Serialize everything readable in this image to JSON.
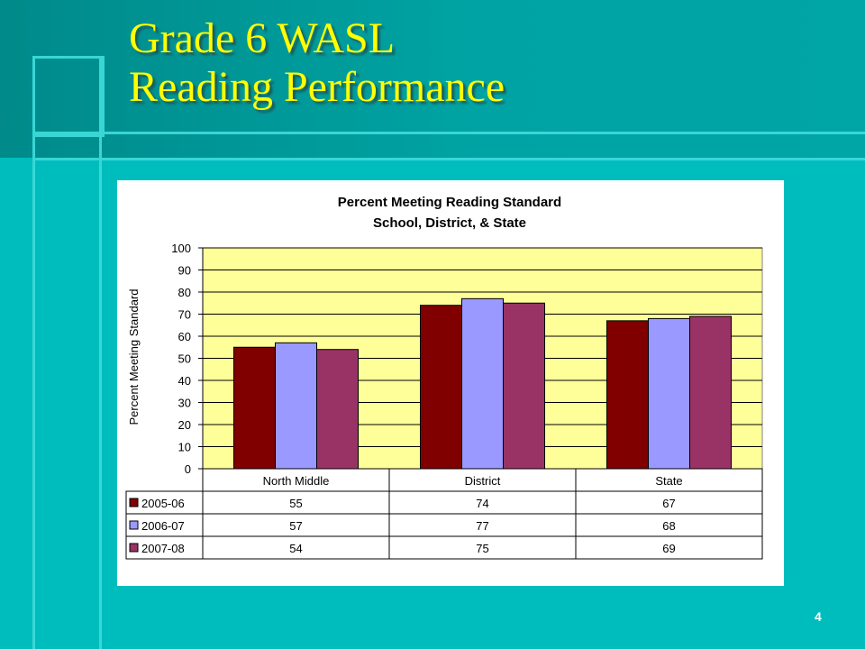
{
  "slide": {
    "title_line1": "Grade 6 WASL",
    "title_line2": "Reading Performance",
    "page_number": "4"
  },
  "colors": {
    "background": "#00bdbd",
    "title": "#ffff00",
    "plot_area": "#ffff99",
    "series": [
      "#800000",
      "#9999ff",
      "#993366"
    ]
  },
  "chart_data": {
    "type": "bar",
    "title_line1": "Percent Meeting Reading Standard",
    "title_line2": "School, District, & State",
    "ylabel": "Percent Meeting Standard",
    "xlabel": "",
    "categories": [
      "North Middle",
      "District",
      "State"
    ],
    "series": [
      {
        "name": "2005-06",
        "values": [
          55,
          74,
          67
        ]
      },
      {
        "name": "2006-07",
        "values": [
          57,
          77,
          68
        ]
      },
      {
        "name": "2007-08",
        "values": [
          54,
          75,
          69
        ]
      }
    ],
    "ylim": [
      0,
      100
    ],
    "yticks": [
      0,
      10,
      20,
      30,
      40,
      50,
      60,
      70,
      80,
      90,
      100
    ],
    "grid": true,
    "legend": "data table below chart"
  }
}
